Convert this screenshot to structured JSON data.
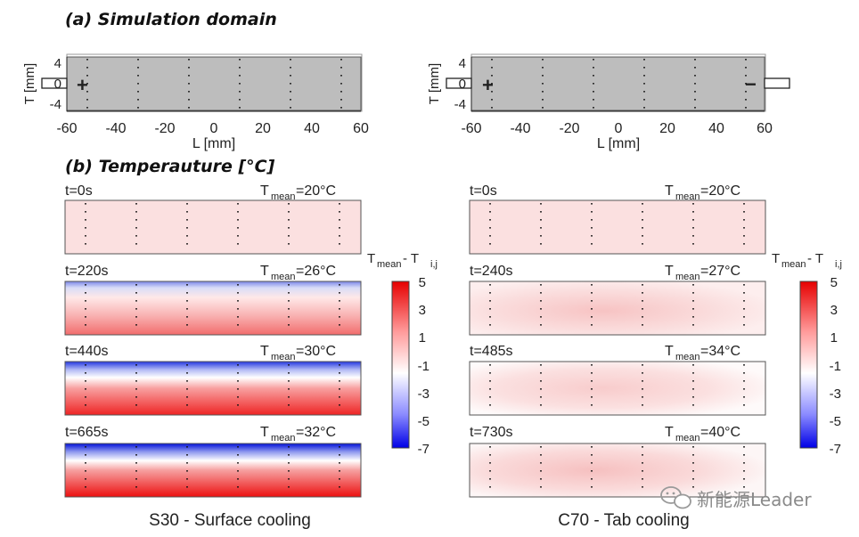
{
  "section_a_title": "(a) Simulation domain",
  "section_b_title": "(b) Temperauture [°C]",
  "domain_axes": {
    "x_label": "L [mm]",
    "y_label": "T [mm]",
    "x_ticks": [
      "-60",
      "-40",
      "-20",
      "0",
      "20",
      "40",
      "60"
    ],
    "y_ticks": [
      "4",
      "0",
      "-4"
    ]
  },
  "left_domain": {
    "plus_symbol": "+"
  },
  "right_domain": {
    "plus_symbol": "+",
    "minus_symbol": "−"
  },
  "left_column": {
    "caption": "S30 -  Surface cooling",
    "panels": [
      {
        "time": "t=0s",
        "tmean": "=20°C"
      },
      {
        "time": "t=220s",
        "tmean": "=26°C"
      },
      {
        "time": "t=440s",
        "tmean": "=30°C"
      },
      {
        "time": "t=665s",
        "tmean": "=32°C"
      }
    ]
  },
  "right_column": {
    "caption": "C70 - Tab cooling",
    "panels": [
      {
        "time": "t=0s",
        "tmean": "=20°C"
      },
      {
        "time": "t=240s",
        "tmean": "=27°C"
      },
      {
        "time": "t=485s",
        "tmean": "=34°C"
      },
      {
        "time": "t=730s",
        "tmean": "=40°C"
      }
    ]
  },
  "tmean_symbol": "T",
  "tmean_sub": "mean",
  "colorbar": {
    "title_main": "T",
    "title_sub": "mean",
    "title_minus": " - T",
    "title_sub2": "i,j",
    "ticks": [
      "5",
      "3",
      "1",
      "-1",
      "-3",
      "-5",
      "-7"
    ],
    "colors": {
      "top": "#ff0000",
      "middle": "#ffffff",
      "bottom": "#0000ff"
    }
  },
  "watermark": "新能源Leader"
}
